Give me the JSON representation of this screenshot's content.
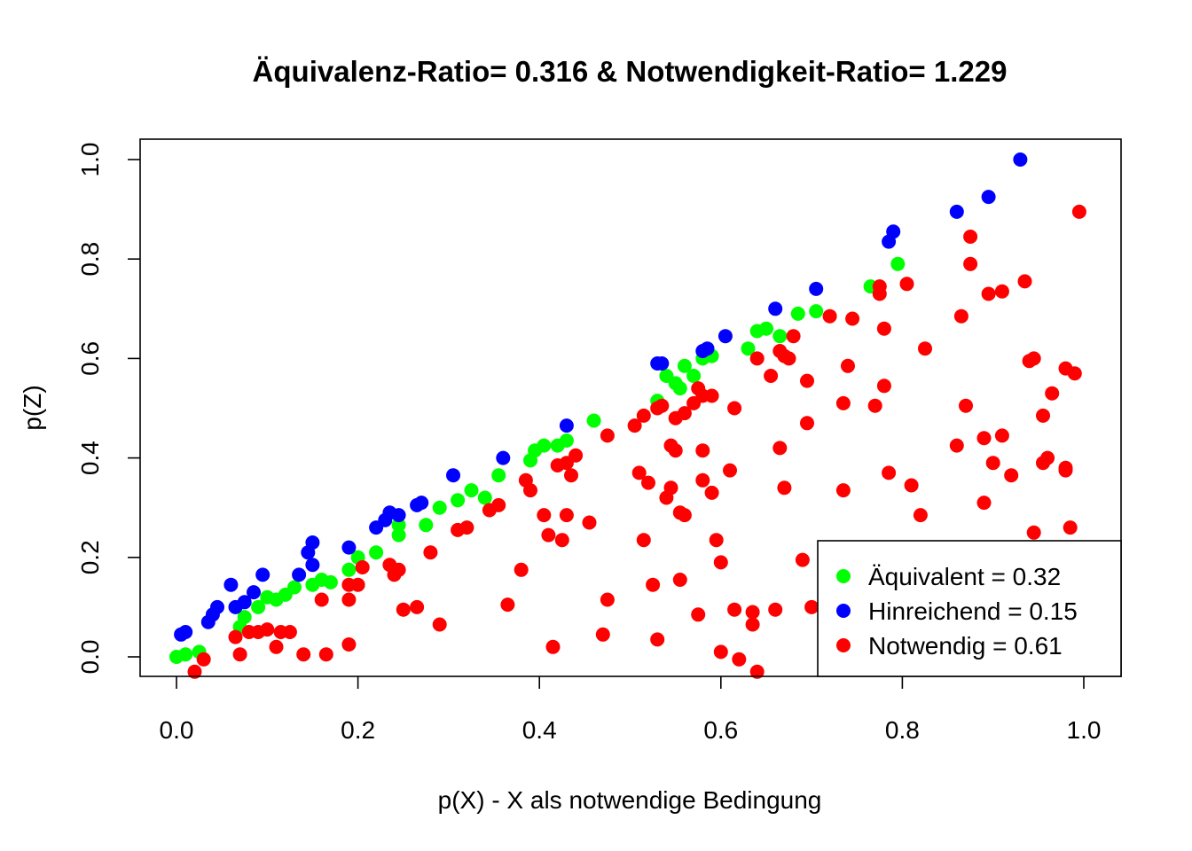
{
  "chart_data": {
    "type": "scatter",
    "title": "Äquivalenz-Ratio= 0.316  & Notwendigkeit-Ratio= 1.229",
    "xlabel": "p(X) - X als notwendige Bedingung",
    "ylabel": "p(Z)",
    "xlim": [
      -0.04,
      1.04
    ],
    "ylim": [
      -0.04,
      1.04
    ],
    "xticks": [
      "0.0",
      "0.2",
      "0.4",
      "0.6",
      "0.8",
      "1.0"
    ],
    "yticks": [
      "0.0",
      "0.2",
      "0.4",
      "0.6",
      "0.8",
      "1.0"
    ],
    "xtick_values": [
      0,
      0.2,
      0.4,
      0.6,
      0.8,
      1.0
    ],
    "ytick_values": [
      0,
      0.2,
      0.4,
      0.6,
      0.8,
      1.0
    ],
    "grid": false,
    "legend_position": "bottom-right",
    "series": [
      {
        "name": "Äquivalent = 0.32",
        "color": "#00ff00",
        "points": [
          [
            0.0,
            0.0
          ],
          [
            0.01,
            0.005
          ],
          [
            0.025,
            0.01
          ],
          [
            0.07,
            0.06
          ],
          [
            0.075,
            0.08
          ],
          [
            0.09,
            0.1
          ],
          [
            0.1,
            0.12
          ],
          [
            0.11,
            0.115
          ],
          [
            0.12,
            0.125
          ],
          [
            0.13,
            0.14
          ],
          [
            0.15,
            0.145
          ],
          [
            0.16,
            0.155
          ],
          [
            0.17,
            0.15
          ],
          [
            0.19,
            0.175
          ],
          [
            0.2,
            0.2
          ],
          [
            0.22,
            0.21
          ],
          [
            0.245,
            0.245
          ],
          [
            0.245,
            0.265
          ],
          [
            0.275,
            0.265
          ],
          [
            0.29,
            0.3
          ],
          [
            0.31,
            0.315
          ],
          [
            0.325,
            0.335
          ],
          [
            0.34,
            0.32
          ],
          [
            0.355,
            0.365
          ],
          [
            0.39,
            0.395
          ],
          [
            0.395,
            0.415
          ],
          [
            0.405,
            0.425
          ],
          [
            0.42,
            0.425
          ],
          [
            0.43,
            0.435
          ],
          [
            0.46,
            0.475
          ],
          [
            0.53,
            0.515
          ],
          [
            0.54,
            0.565
          ],
          [
            0.55,
            0.55
          ],
          [
            0.555,
            0.54
          ],
          [
            0.56,
            0.585
          ],
          [
            0.57,
            0.565
          ],
          [
            0.58,
            0.6
          ],
          [
            0.59,
            0.605
          ],
          [
            0.63,
            0.62
          ],
          [
            0.64,
            0.655
          ],
          [
            0.65,
            0.66
          ],
          [
            0.665,
            0.645
          ],
          [
            0.685,
            0.69
          ],
          [
            0.705,
            0.695
          ],
          [
            0.765,
            0.745
          ],
          [
            0.795,
            0.79
          ]
        ]
      },
      {
        "name": "Hinreichend = 0.15",
        "color": "#0000ff",
        "points": [
          [
            0.005,
            0.045
          ],
          [
            0.01,
            0.05
          ],
          [
            0.035,
            0.07
          ],
          [
            0.04,
            0.085
          ],
          [
            0.045,
            0.1
          ],
          [
            0.06,
            0.145
          ],
          [
            0.065,
            0.1
          ],
          [
            0.075,
            0.11
          ],
          [
            0.085,
            0.13
          ],
          [
            0.095,
            0.165
          ],
          [
            0.135,
            0.165
          ],
          [
            0.145,
            0.21
          ],
          [
            0.15,
            0.185
          ],
          [
            0.15,
            0.23
          ],
          [
            0.19,
            0.22
          ],
          [
            0.22,
            0.26
          ],
          [
            0.23,
            0.275
          ],
          [
            0.235,
            0.29
          ],
          [
            0.245,
            0.285
          ],
          [
            0.265,
            0.305
          ],
          [
            0.27,
            0.31
          ],
          [
            0.305,
            0.365
          ],
          [
            0.36,
            0.4
          ],
          [
            0.43,
            0.465
          ],
          [
            0.53,
            0.59
          ],
          [
            0.535,
            0.59
          ],
          [
            0.58,
            0.615
          ],
          [
            0.585,
            0.62
          ],
          [
            0.605,
            0.645
          ],
          [
            0.66,
            0.7
          ],
          [
            0.705,
            0.74
          ],
          [
            0.785,
            0.835
          ],
          [
            0.79,
            0.855
          ],
          [
            0.86,
            0.895
          ],
          [
            0.895,
            0.925
          ],
          [
            0.93,
            1.0
          ]
        ]
      },
      {
        "name": "Notwendig = 0.61",
        "color": "#ff0000",
        "points": [
          [
            0.02,
            -0.03
          ],
          [
            0.03,
            -0.005
          ],
          [
            0.035,
            -0.04
          ],
          [
            0.065,
            0.04
          ],
          [
            0.07,
            0.005
          ],
          [
            0.08,
            0.05
          ],
          [
            0.09,
            0.05
          ],
          [
            0.1,
            0.055
          ],
          [
            0.11,
            0.02
          ],
          [
            0.115,
            0.05
          ],
          [
            0.125,
            0.05
          ],
          [
            0.14,
            0.005
          ],
          [
            0.16,
            0.115
          ],
          [
            0.165,
            0.005
          ],
          [
            0.19,
            0.025
          ],
          [
            0.19,
            0.145
          ],
          [
            0.19,
            0.115
          ],
          [
            0.2,
            0.145
          ],
          [
            0.205,
            0.18
          ],
          [
            0.235,
            0.185
          ],
          [
            0.24,
            0.165
          ],
          [
            0.245,
            0.175
          ],
          [
            0.25,
            0.095
          ],
          [
            0.265,
            0.1
          ],
          [
            0.28,
            0.21
          ],
          [
            0.29,
            0.065
          ],
          [
            0.31,
            0.255
          ],
          [
            0.32,
            0.26
          ],
          [
            0.345,
            0.295
          ],
          [
            0.355,
            0.305
          ],
          [
            0.365,
            0.105
          ],
          [
            0.38,
            0.175
          ],
          [
            0.385,
            0.355
          ],
          [
            0.39,
            0.335
          ],
          [
            0.405,
            0.285
          ],
          [
            0.41,
            0.245
          ],
          [
            0.415,
            0.02
          ],
          [
            0.42,
            0.385
          ],
          [
            0.425,
            0.235
          ],
          [
            0.43,
            0.285
          ],
          [
            0.43,
            0.39
          ],
          [
            0.435,
            0.365
          ],
          [
            0.44,
            0.405
          ],
          [
            0.455,
            0.27
          ],
          [
            0.475,
            0.115
          ],
          [
            0.475,
            0.445
          ],
          [
            0.47,
            0.045
          ],
          [
            0.505,
            0.465
          ],
          [
            0.51,
            0.37
          ],
          [
            0.515,
            0.235
          ],
          [
            0.515,
            0.485
          ],
          [
            0.52,
            0.35
          ],
          [
            0.525,
            0.145
          ],
          [
            0.53,
            0.035
          ],
          [
            0.53,
            0.5
          ],
          [
            0.535,
            0.505
          ],
          [
            0.54,
            0.32
          ],
          [
            0.545,
            0.34
          ],
          [
            0.545,
            0.425
          ],
          [
            0.55,
            0.48
          ],
          [
            0.55,
            0.415
          ],
          [
            0.555,
            0.155
          ],
          [
            0.555,
            0.29
          ],
          [
            0.56,
            0.285
          ],
          [
            0.56,
            0.49
          ],
          [
            0.57,
            0.51
          ],
          [
            0.575,
            0.085
          ],
          [
            0.575,
            0.54
          ],
          [
            0.58,
            0.415
          ],
          [
            0.58,
            0.355
          ],
          [
            0.58,
            0.525
          ],
          [
            0.59,
            0.33
          ],
          [
            0.59,
            0.525
          ],
          [
            0.595,
            0.235
          ],
          [
            0.6,
            0.01
          ],
          [
            0.6,
            0.19
          ],
          [
            0.61,
            0.375
          ],
          [
            0.615,
            0.5
          ],
          [
            0.62,
            -0.005
          ],
          [
            0.615,
            0.095
          ],
          [
            0.635,
            0.065
          ],
          [
            0.635,
            0.09
          ],
          [
            0.64,
            -0.03
          ],
          [
            0.64,
            0.6
          ],
          [
            0.655,
            0.565
          ],
          [
            0.66,
            0.095
          ],
          [
            0.665,
            0.615
          ],
          [
            0.665,
            0.42
          ],
          [
            0.67,
            0.605
          ],
          [
            0.67,
            0.34
          ],
          [
            0.675,
            0.6
          ],
          [
            0.68,
            0.645
          ],
          [
            0.69,
            0.195
          ],
          [
            0.695,
            0.555
          ],
          [
            0.695,
            0.47
          ],
          [
            0.7,
            0.1
          ],
          [
            0.72,
            0.685
          ],
          [
            0.735,
            0.51
          ],
          [
            0.735,
            0.335
          ],
          [
            0.74,
            0.585
          ],
          [
            0.745,
            0.68
          ],
          [
            0.77,
            0.505
          ],
          [
            0.775,
            0.745
          ],
          [
            0.775,
            0.73
          ],
          [
            0.78,
            0.545
          ],
          [
            0.78,
            0.66
          ],
          [
            0.785,
            0.37
          ],
          [
            0.805,
            0.75
          ],
          [
            0.81,
            0.345
          ],
          [
            0.82,
            0.285
          ],
          [
            0.825,
            0.62
          ],
          [
            0.86,
            0.425
          ],
          [
            0.865,
            0.685
          ],
          [
            0.87,
            0.505
          ],
          [
            0.875,
            0.79
          ],
          [
            0.875,
            0.845
          ],
          [
            0.89,
            0.31
          ],
          [
            0.89,
            0.44
          ],
          [
            0.895,
            0.73
          ],
          [
            0.9,
            0.39
          ],
          [
            0.91,
            0.445
          ],
          [
            0.91,
            0.735
          ],
          [
            0.92,
            0.365
          ],
          [
            0.935,
            0.755
          ],
          [
            0.94,
            0.595
          ],
          [
            0.945,
            0.6
          ],
          [
            0.945,
            0.25
          ],
          [
            0.955,
            0.485
          ],
          [
            0.955,
            0.39
          ],
          [
            0.96,
            0.4
          ],
          [
            0.965,
            0.53
          ],
          [
            0.98,
            0.38
          ],
          [
            0.98,
            0.58
          ],
          [
            0.98,
            0.375
          ],
          [
            0.985,
            0.26
          ],
          [
            0.99,
            0.57
          ],
          [
            0.995,
            0.895
          ]
        ]
      }
    ]
  }
}
